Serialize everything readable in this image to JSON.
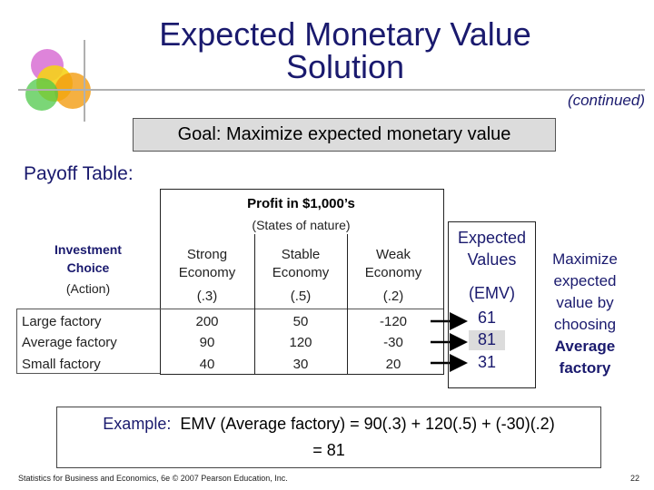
{
  "title": "Expected Monetary Value Solution",
  "continued": "(continued)",
  "goal": "Goal:  Maximize expected monetary value",
  "payoff_label": "Payoff Table:",
  "table": {
    "profit_header": "Profit in $1,000’s",
    "states_header": "(States of nature)",
    "investment_header_1": "Investment",
    "investment_header_2": "Choice",
    "action_label": "(Action)",
    "columns": [
      {
        "line1": "Strong",
        "line2": "Economy",
        "prob": "(.3)"
      },
      {
        "line1": "Stable",
        "line2": "Economy",
        "prob": "(.5)"
      },
      {
        "line1": "Weak",
        "line2": "Economy",
        "prob": "(.2)"
      }
    ],
    "rows": [
      {
        "label": "Large factory",
        "values": [
          "200",
          "50",
          "-120"
        ]
      },
      {
        "label": "Average factory",
        "values": [
          "90",
          "120",
          "-30"
        ]
      },
      {
        "label": "Small factory",
        "values": [
          "40",
          "30",
          "20"
        ]
      }
    ]
  },
  "expected": {
    "header_1": "Expected",
    "header_2": "Values",
    "emv_label": "(EMV)",
    "values": [
      "61",
      "81",
      "31"
    ]
  },
  "maximize": {
    "line1": "Maximize",
    "line2": "expected",
    "line3": "value by",
    "line4": "choosing",
    "line5": "Average",
    "line6": "factory"
  },
  "example": {
    "prefix": "Example:",
    "body": "EMV (Average factory) = 90(.3) + 120(.5) + (-30)(.2)",
    "result": "= 81"
  },
  "footer": "Statistics for Business and Economics, 6e © 2007 Pearson Education, Inc.",
  "page_number": "22",
  "colors": {
    "accent": "#1a1a6e",
    "highlight": "#dcdcdc"
  }
}
